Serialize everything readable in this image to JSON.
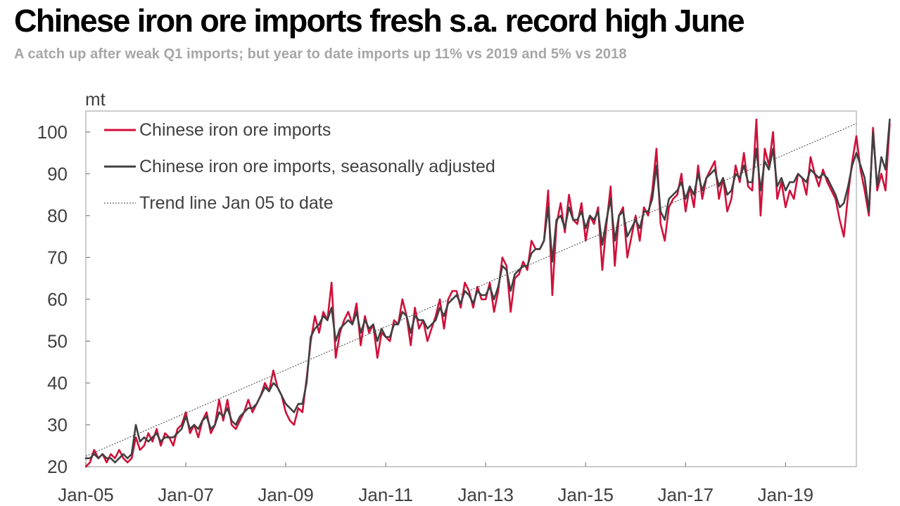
{
  "header": {
    "title": "Chinese iron ore imports fresh s.a. record high June",
    "subtitle": "A catch up after weak Q1 imports; but year to date imports up 11% vs 2019 and 5% vs 2018"
  },
  "chart_data": {
    "type": "line",
    "ylabel": "mt",
    "ylim": [
      20,
      105
    ],
    "yticks": [
      20,
      30,
      40,
      50,
      60,
      70,
      80,
      90,
      100
    ],
    "x_range": [
      "Jan-05",
      "Jun-20"
    ],
    "xticks": [
      "Jan-05",
      "Jan-07",
      "Jan-09",
      "Jan-11",
      "Jan-13",
      "Jan-15",
      "Jan-17",
      "Jan-19"
    ],
    "grid": false,
    "legend_position": "top-left",
    "colors": {
      "raw": "#d0103a",
      "sa": "#404040",
      "trend": "#404040"
    },
    "series": [
      {
        "name": "Chinese iron ore imports",
        "style": "solid",
        "start": "Jan-05",
        "values": [
          20,
          21,
          24,
          22,
          23,
          21,
          23,
          22,
          24,
          22,
          21,
          22,
          27,
          24,
          25,
          28,
          26,
          29,
          25,
          28,
          27,
          25,
          29,
          30,
          33,
          28,
          30,
          27,
          31,
          33,
          28,
          30,
          36,
          31,
          36,
          30,
          29,
          31,
          33,
          36,
          33,
          35,
          37,
          40,
          38,
          43,
          39,
          37,
          33,
          31,
          30,
          34,
          33,
          41,
          50,
          56,
          52,
          57,
          55,
          64,
          46,
          52,
          55,
          57,
          54,
          59,
          49,
          56,
          52,
          54,
          46,
          52,
          51,
          50,
          55,
          54,
          60,
          56,
          49,
          58,
          53,
          55,
          50,
          53,
          56,
          60,
          53,
          60,
          62,
          62,
          58,
          64,
          62,
          58,
          63,
          60,
          60,
          64,
          57,
          62,
          70,
          68,
          57,
          65,
          66,
          69,
          67,
          74,
          72,
          72,
          74,
          86,
          61,
          78,
          83,
          76,
          85,
          79,
          78,
          83,
          74,
          80,
          78,
          82,
          67,
          78,
          87,
          68,
          80,
          82,
          70,
          75,
          80,
          74,
          82,
          80,
          86,
          96,
          78,
          74,
          82,
          84,
          85,
          90,
          81,
          87,
          82,
          92,
          84,
          89,
          91,
          93,
          84,
          89,
          81,
          84,
          92,
          88,
          95,
          87,
          86,
          103,
          80,
          96,
          92,
          100,
          84,
          88,
          82,
          86,
          84,
          90,
          89,
          85,
          94,
          90,
          87,
          91,
          88,
          86,
          84,
          79,
          75,
          85,
          93,
          99,
          91,
          86,
          80,
          101,
          86,
          90,
          86,
          102
        ],
        "note": ""
      },
      {
        "name": "Chinese iron ore imports, seasonally adjusted",
        "style": "solid",
        "start": "Jan-05",
        "values": [
          22,
          22,
          23,
          22,
          23,
          22,
          22,
          21,
          22,
          23,
          22,
          23,
          30,
          26,
          27,
          26,
          27,
          28,
          26,
          27,
          27,
          27,
          28,
          29,
          32,
          29,
          30,
          29,
          31,
          32,
          29,
          30,
          33,
          32,
          34,
          31,
          30,
          32,
          33,
          34,
          34,
          35,
          37,
          39,
          38,
          40,
          39,
          37,
          35,
          34,
          33,
          35,
          35,
          40,
          51,
          53,
          54,
          56,
          55,
          58,
          50,
          53,
          54,
          55,
          54,
          57,
          52,
          55,
          53,
          54,
          50,
          53,
          51,
          51,
          54,
          54,
          57,
          56,
          52,
          56,
          55,
          55,
          53,
          54,
          55,
          58,
          56,
          59,
          60,
          61,
          59,
          62,
          61,
          59,
          62,
          61,
          61,
          63,
          60,
          63,
          68,
          67,
          62,
          66,
          67,
          68,
          68,
          71,
          72,
          72,
          74,
          82,
          69,
          79,
          80,
          77,
          82,
          79,
          79,
          81,
          77,
          80,
          79,
          81,
          73,
          79,
          84,
          74,
          80,
          81,
          75,
          77,
          79,
          77,
          81,
          81,
          84,
          92,
          81,
          79,
          84,
          85,
          86,
          88,
          84,
          87,
          85,
          90,
          86,
          89,
          90,
          91,
          87,
          89,
          85,
          86,
          90,
          89,
          92,
          88,
          88,
          96,
          86,
          93,
          91,
          96,
          87,
          89,
          86,
          88,
          88,
          90,
          89,
          88,
          91,
          90,
          89,
          90,
          89,
          87,
          85,
          82,
          83,
          87,
          92,
          95,
          92,
          89,
          81,
          100,
          87,
          94,
          91,
          103
        ],
        "note": ""
      },
      {
        "name": "Trend line Jan 05 to date",
        "style": "dotted",
        "start_point": [
          "Jan-05",
          22.5
        ],
        "end_point": [
          "Jun-20",
          102
        ]
      }
    ]
  }
}
